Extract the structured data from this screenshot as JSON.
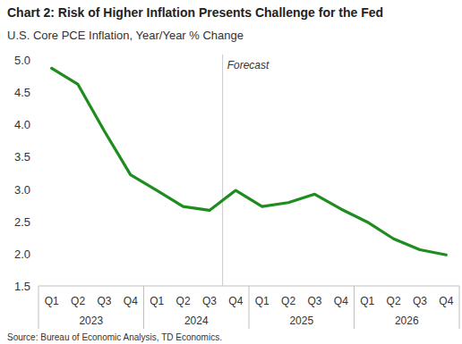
{
  "chart_data": {
    "type": "line",
    "title": "Chart 2: Risk of Higher Inflation Presents Challenge for the Fed",
    "subtitle": "U.S. Core PCE Inflation, Year/Year % Change",
    "source": "Source: Bureau of Economic Analysis, TD Economics.",
    "categories": [
      "Q1",
      "Q2",
      "Q3",
      "Q4",
      "Q1",
      "Q2",
      "Q3",
      "Q4",
      "Q1",
      "Q2",
      "Q3",
      "Q4",
      "Q1",
      "Q2",
      "Q3",
      "Q4"
    ],
    "category_groups": [
      "2023",
      "2024",
      "2025",
      "2026"
    ],
    "series": [
      {
        "name": "U.S. Core PCE Inflation",
        "color": "#1e8c1e",
        "values": [
          4.87,
          4.62,
          3.9,
          3.22,
          2.98,
          2.73,
          2.67,
          2.98,
          2.73,
          2.79,
          2.92,
          2.69,
          2.49,
          2.23,
          2.06,
          1.98
        ]
      }
    ],
    "annotations": [
      {
        "text": "Forecast",
        "x": 6.5
      }
    ],
    "ylim": [
      1.5,
      5.0
    ],
    "yticks": [
      {
        "value": 1.5,
        "label": "1.5"
      },
      {
        "value": 2,
        "label": "2.0"
      },
      {
        "value": 2.5,
        "label": "2.5"
      },
      {
        "value": 3,
        "label": "3.0"
      },
      {
        "value": 3.5,
        "label": "3.5"
      },
      {
        "value": 4,
        "label": "4.0"
      },
      {
        "value": 4.5,
        "label": "4.5"
      },
      {
        "value": 5,
        "label": "5.0"
      }
    ],
    "grid": false
  }
}
